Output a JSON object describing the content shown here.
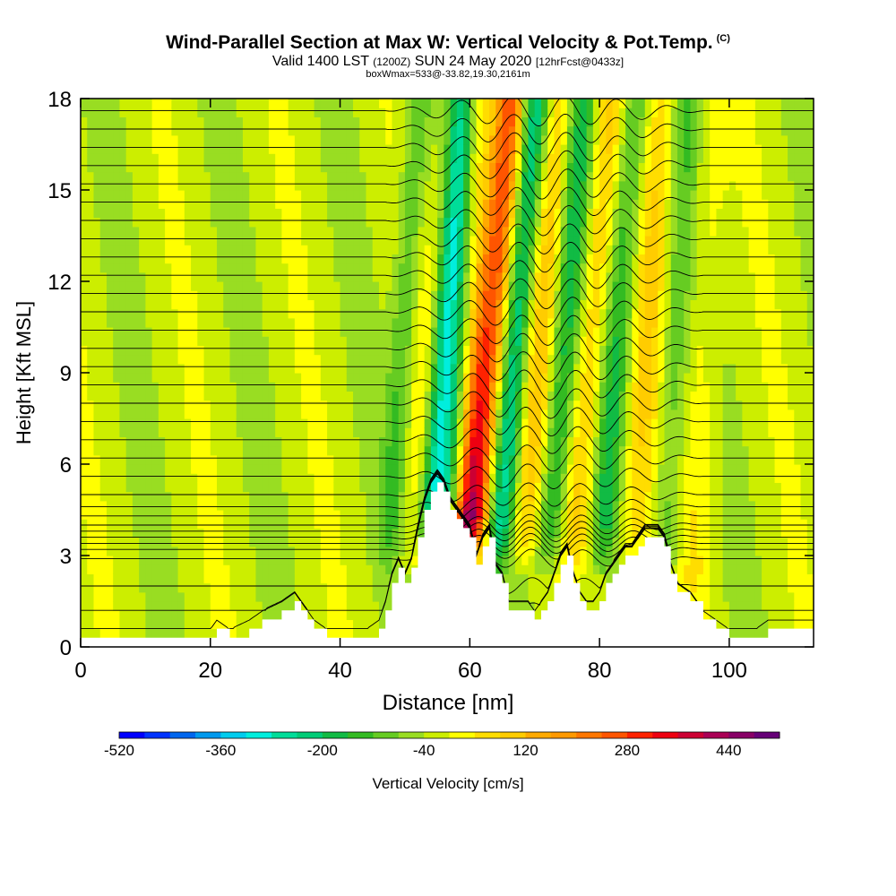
{
  "header": {
    "title": "Wind-Parallel Section at Max W: Vertical Velocity & Pot.Temp.",
    "title_sup": "(C)",
    "valid_a": "Valid 1400 LST",
    "valid_b": "(1200Z)",
    "valid_c": "SUN 24 May 2020",
    "valid_d": "[12hrFcst@0433z]",
    "box_info": "boxWmax=533@-33.82,19.30,2161m"
  },
  "colors": {
    "background_field": "#d9f200",
    "terrain": "#ffffff",
    "contour": "#000000",
    "palette": [
      "#0000ff",
      "#0033ff",
      "#0066ee",
      "#0099ee",
      "#00ccee",
      "#00eedd",
      "#00dd99",
      "#00cc77",
      "#11bb44",
      "#33bb22",
      "#66cc22",
      "#99dd22",
      "#ccee00",
      "#ffff00",
      "#ffdd00",
      "#ffcc00",
      "#ffaa00",
      "#ff9900",
      "#ff7700",
      "#ff5500",
      "#ff2200",
      "#ee0011",
      "#cc0033",
      "#aa0055",
      "#880066",
      "#660077"
    ]
  },
  "chart_data": {
    "type": "heatmap",
    "title": "Wind-Parallel Section at Max W: Vertical Velocity & Pot.Temp.",
    "xlabel": "Distance [nm]",
    "ylabel": "Height [Kft MSL]",
    "xlim": [
      0,
      113
    ],
    "ylim": [
      0,
      18
    ],
    "xticks": [
      0,
      20,
      40,
      60,
      80,
      100
    ],
    "yticks": [
      0,
      3,
      6,
      9,
      12,
      15,
      18
    ],
    "colorbar": {
      "label": "Vertical Velocity [cm/s]",
      "range": [
        -520,
        520
      ],
      "step": 40,
      "tick_values": [
        -520,
        -360,
        -200,
        -40,
        120,
        280,
        440
      ]
    },
    "terrain": {
      "x": [
        0,
        20,
        21,
        23,
        26,
        28,
        31,
        33,
        34,
        35,
        36,
        38,
        40,
        42,
        44,
        46,
        47,
        48,
        49,
        50,
        51,
        52,
        53,
        54,
        55,
        56,
        57,
        58,
        59,
        60,
        61,
        62,
        63,
        64,
        65,
        66,
        67,
        68,
        69,
        70,
        71,
        72,
        73,
        74,
        75,
        76,
        77,
        78,
        79,
        80,
        81,
        82,
        83,
        84,
        85,
        86,
        87,
        88,
        89,
        90,
        91,
        92,
        94,
        96,
        98,
        100,
        102,
        104,
        106,
        108,
        110,
        113
      ],
      "y": [
        0.3,
        0.3,
        0.6,
        0.3,
        0.6,
        0.9,
        1.2,
        1.5,
        1.2,
        0.9,
        0.6,
        0.3,
        0.3,
        0.3,
        0.3,
        0.6,
        1.2,
        2.1,
        2.6,
        2.1,
        2.6,
        3.6,
        4.5,
        5.1,
        5.4,
        5.1,
        4.5,
        4.2,
        3.9,
        3.6,
        2.7,
        3.3,
        3.6,
        2.4,
        2.1,
        1.2,
        1.2,
        1.2,
        1.2,
        0.9,
        1.2,
        1.5,
        2.1,
        2.7,
        3.0,
        2.1,
        1.5,
        1.2,
        1.2,
        1.5,
        2.1,
        2.4,
        2.7,
        3.0,
        3.0,
        3.3,
        3.6,
        3.6,
        3.6,
        3.3,
        2.4,
        1.8,
        1.5,
        0.9,
        0.6,
        0.3,
        0.3,
        0.3,
        0.6,
        0.6,
        0.6,
        0.6
      ]
    },
    "updraft_bands": [
      {
        "x0_bottom": 58.5,
        "x0_top": 62.0,
        "width": 2.4,
        "w_peak": 480,
        "y_min": 2.8,
        "y_max": 18
      },
      {
        "x0_bottom": 61.0,
        "x0_top": 66.5,
        "width": 2.6,
        "w_peak": 300,
        "y_min": 2.8,
        "y_max": 18
      },
      {
        "x0_bottom": 68.0,
        "x0_top": 74.0,
        "width": 3.0,
        "w_peak": 160,
        "y_min": 2.5,
        "y_max": 18
      },
      {
        "x0_bottom": 76.0,
        "x0_top": 81.5,
        "width": 3.0,
        "w_peak": 140,
        "y_min": 2.5,
        "y_max": 18
      },
      {
        "x0_bottom": 85.0,
        "x0_top": 89.5,
        "width": 3.0,
        "w_peak": 110,
        "y_min": 2.5,
        "y_max": 18
      },
      {
        "x0_bottom": 94.0,
        "x0_top": 97.0,
        "width": 3.0,
        "w_peak": 60,
        "y_min": 1.0,
        "y_max": 18
      },
      {
        "x0_bottom": 50.5,
        "x0_top": 57.5,
        "width": 2.2,
        "w_peak": 80,
        "y_min": 2.5,
        "y_max": 18
      }
    ],
    "downdraft_bands": [
      {
        "x0_bottom": 54.0,
        "x0_top": 59.0,
        "width": 2.4,
        "w_peak": -300,
        "y_min": 3.0,
        "y_max": 18
      },
      {
        "x0_bottom": 57.5,
        "x0_top": 62.5,
        "width": 2.2,
        "w_peak": -380,
        "y_min": 3.5,
        "y_max": 18
      },
      {
        "x0_bottom": 64.0,
        "x0_top": 70.0,
        "width": 2.6,
        "w_peak": -280,
        "y_min": 2.5,
        "y_max": 18
      },
      {
        "x0_bottom": 72.0,
        "x0_top": 77.5,
        "width": 2.6,
        "w_peak": -200,
        "y_min": 2.5,
        "y_max": 18
      },
      {
        "x0_bottom": 80.0,
        "x0_top": 85.5,
        "width": 2.6,
        "w_peak": -160,
        "y_min": 2.5,
        "y_max": 18
      },
      {
        "x0_bottom": 90.0,
        "x0_top": 93.5,
        "width": 2.6,
        "w_peak": -100,
        "y_min": 1.5,
        "y_max": 18
      },
      {
        "x0_bottom": 47.5,
        "x0_top": 52.0,
        "width": 2.0,
        "w_peak": -100,
        "y_min": 2.5,
        "y_max": 18
      }
    ],
    "theta_contours": {
      "base_levels_kft": [
        0.6,
        1.2,
        2.0,
        2.9,
        3.2,
        3.4,
        3.6,
        3.8,
        4.0,
        4.3,
        4.6,
        5.0,
        5.6,
        6.2,
        6.8,
        7.4,
        8.0,
        8.6,
        9.2,
        9.8,
        10.4,
        11.0,
        11.6,
        12.2,
        12.8,
        13.4,
        14.0,
        14.6,
        15.2,
        15.8,
        16.4,
        17.0,
        17.6
      ],
      "wave_x_start": 47,
      "wave_x_end": 96,
      "wave_wavelength_nm": 8,
      "wave_amplitude_kft": 0.5
    }
  }
}
